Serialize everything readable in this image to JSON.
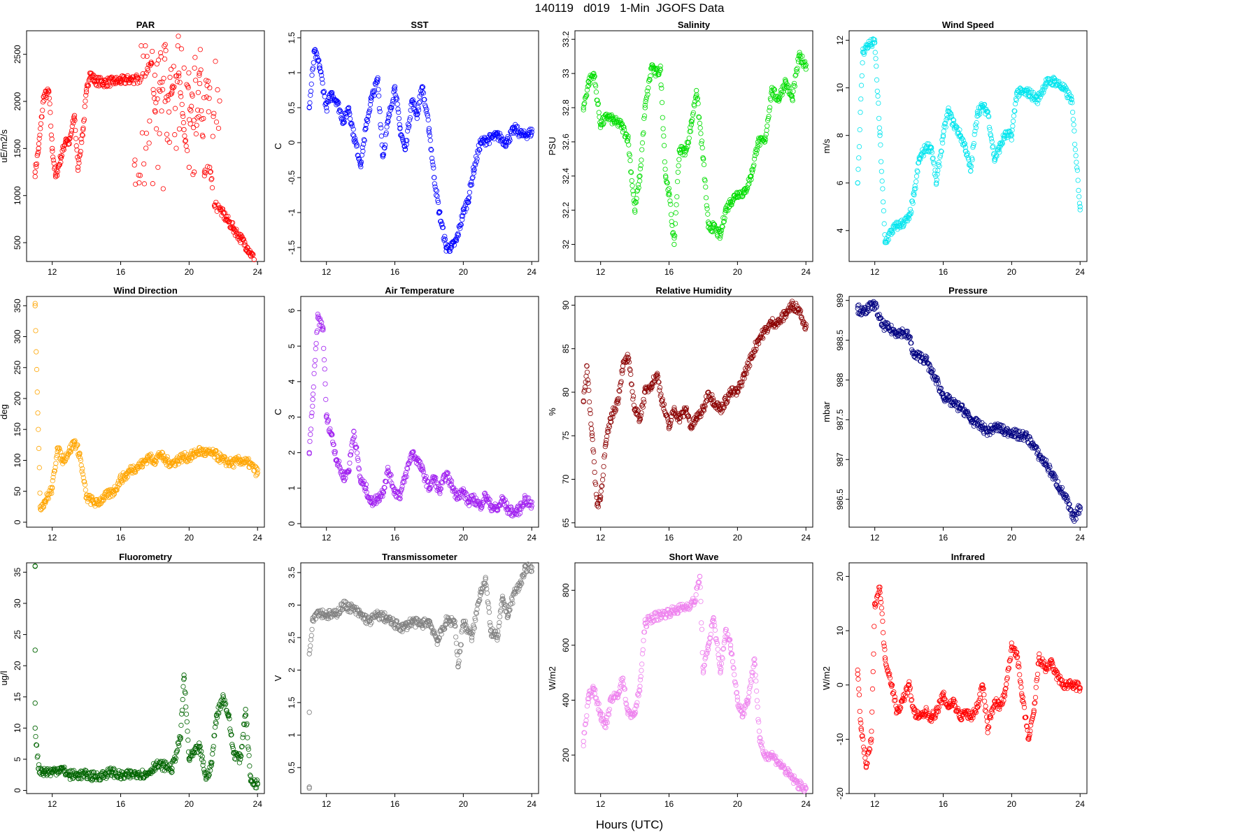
{
  "title": "140119   d019   1-Min  JGOFS Data",
  "xlabel": "Hours (UTC)",
  "chart_data": [
    {
      "type": "scatter",
      "title": "PAR",
      "ylabel": "uE/m2/s",
      "color": "#ff0000",
      "xlim": [
        10.5,
        24.4
      ],
      "ylim": [
        300,
        2750
      ],
      "xticks": [
        12,
        16,
        20,
        24
      ],
      "yticks": [
        500,
        1000,
        1500,
        2000,
        2500
      ],
      "x": [
        11,
        11.2,
        11.5,
        11.8,
        12,
        12.2,
        12.5,
        12.8,
        13,
        13.3,
        13.5,
        13.8,
        14,
        14.2,
        14.5,
        15,
        15.5,
        16,
        16.5,
        17,
        17.5,
        17.8,
        18,
        18.3,
        18.6,
        19,
        19.4,
        19.7,
        20,
        20.3,
        20.6,
        20.9,
        21.2,
        21.5,
        21.8,
        22.2,
        22.6,
        23,
        23.4,
        23.8
      ],
      "y": [
        1250,
        1500,
        2050,
        2100,
        1500,
        1200,
        1400,
        1600,
        1550,
        1850,
        1300,
        1700,
        2100,
        2300,
        2220,
        2200,
        2210,
        2220,
        2230,
        2240,
        2300,
        2400,
        1900,
        2200,
        2000,
        2100,
        2300,
        1700,
        1300,
        1250,
        2300,
        1250,
        1300,
        900,
        850,
        750,
        650,
        550,
        450,
        320
      ],
      "scatter_range": [
        [
          17.8,
          1000,
          2600
        ],
        [
          19.2,
          1500,
          2700
        ],
        [
          20.8,
          1600,
          2600
        ]
      ]
    },
    {
      "type": "scatter",
      "title": "SST",
      "ylabel": "C",
      "color": "#0000ff",
      "xlim": [
        10.5,
        24.4
      ],
      "ylim": [
        -1.7,
        1.6
      ],
      "xticks": [
        12,
        16,
        20,
        24
      ],
      "yticks": [
        -1.5,
        -1.0,
        -0.5,
        0.0,
        0.5,
        1.0,
        1.5
      ],
      "x": [
        11,
        11.3,
        11.6,
        12,
        12.3,
        12.6,
        13,
        13.3,
        13.6,
        14,
        14.3,
        14.6,
        15,
        15.3,
        15.6,
        16,
        16.3,
        16.6,
        17,
        17.3,
        17.6,
        18,
        18.3,
        18.6,
        19,
        19.3,
        19.6,
        20,
        20.3,
        20.6,
        21,
        21.5,
        22,
        22.5,
        23,
        23.5,
        24
      ],
      "y": [
        0.5,
        1.3,
        1.1,
        0.5,
        0.7,
        0.6,
        0.3,
        0.5,
        0.1,
        -0.3,
        0.2,
        0.6,
        0.9,
        -0.2,
        0.3,
        0.8,
        0.2,
        -0.1,
        0.6,
        0.4,
        0.8,
        0.2,
        -0.5,
        -1.0,
        -1.5,
        -1.5,
        -1.4,
        -1.0,
        -0.8,
        -0.4,
        0.0,
        0.05,
        0.1,
        0.0,
        0.2,
        0.1,
        0.15
      ]
    },
    {
      "type": "scatter",
      "title": "Salinity",
      "ylabel": "PSU",
      "color": "#00dd00",
      "xlim": [
        10.5,
        24.4
      ],
      "ylim": [
        31.9,
        33.25
      ],
      "xticks": [
        12,
        16,
        20,
        24
      ],
      "yticks": [
        32.0,
        32.2,
        32.4,
        32.6,
        32.8,
        33.0,
        33.2
      ],
      "x": [
        11,
        11.3,
        11.6,
        12,
        12.4,
        12.8,
        13.2,
        13.6,
        14,
        14.3,
        14.6,
        15,
        15.2,
        15.5,
        15.8,
        16,
        16.3,
        16.6,
        17,
        17.3,
        17.6,
        18,
        18.3,
        18.6,
        19,
        19.3,
        19.6,
        20,
        20.4,
        20.8,
        21.2,
        21.6,
        22,
        22.4,
        22.8,
        23.2,
        23.6,
        24
      ],
      "y": [
        32.8,
        32.95,
        33.0,
        32.7,
        32.75,
        32.72,
        32.7,
        32.62,
        32.2,
        32.4,
        32.8,
        33.05,
        33.0,
        33.02,
        32.4,
        32.3,
        32.0,
        32.55,
        32.55,
        32.7,
        32.9,
        32.5,
        32.1,
        32.1,
        32.05,
        32.2,
        32.25,
        32.3,
        32.3,
        32.4,
        32.6,
        32.6,
        32.9,
        32.85,
        32.95,
        32.85,
        33.1,
        33.05
      ]
    },
    {
      "type": "scatter",
      "title": "Wind Speed",
      "ylabel": "m/s",
      "color": "#00e5ee",
      "xlim": [
        10.5,
        24.4
      ],
      "ylim": [
        2.7,
        12.4
      ],
      "xticks": [
        12,
        16,
        20,
        24
      ],
      "yticks": [
        4,
        6,
        8,
        10,
        12
      ],
      "x": [
        11,
        11.3,
        11.6,
        12,
        12.3,
        12.6,
        13,
        13.3,
        13.6,
        14,
        14.3,
        14.6,
        15,
        15.3,
        15.6,
        16,
        16.3,
        16.6,
        17,
        17.3,
        17.6,
        18,
        18.3,
        18.6,
        19,
        19.3,
        19.6,
        20,
        20.3,
        20.6,
        21,
        21.5,
        22,
        22.5,
        23,
        23.5,
        24
      ],
      "y": [
        6,
        11.5,
        11.8,
        11.9,
        8,
        3.5,
        4,
        4.2,
        4.3,
        4.5,
        5.5,
        7,
        7.5,
        7.5,
        6,
        8,
        9,
        8.5,
        8,
        7.5,
        6.5,
        9,
        9.2,
        9,
        7,
        7.5,
        8,
        8,
        9.8,
        9.8,
        9.8,
        9.5,
        10.2,
        10.3,
        10,
        9.5,
        5
      ]
    },
    {
      "type": "scatter",
      "title": "Wind Direction",
      "ylabel": "deg",
      "color": "#ffa500",
      "xlim": [
        10.5,
        24.4
      ],
      "ylim": [
        -8,
        365
      ],
      "xticks": [
        12,
        16,
        20,
        24
      ],
      "yticks": [
        0,
        50,
        100,
        150,
        200,
        250,
        300,
        350
      ],
      "x": [
        11,
        11.3,
        11.6,
        12,
        12.3,
        12.6,
        13,
        13.3,
        13.6,
        14,
        14.3,
        14.6,
        15,
        15.3,
        15.6,
        16,
        16.3,
        16.6,
        17,
        17.3,
        17.6,
        18,
        18.3,
        18.6,
        19,
        19.3,
        19.6,
        20,
        20.3,
        20.6,
        21,
        21.5,
        22,
        22.5,
        23,
        23.5,
        24
      ],
      "y": [
        350,
        25,
        35,
        55,
        120,
        100,
        115,
        130,
        110,
        40,
        35,
        30,
        40,
        45,
        50,
        70,
        75,
        85,
        90,
        95,
        105,
        100,
        110,
        100,
        95,
        100,
        105,
        105,
        110,
        115,
        112,
        110,
        100,
        95,
        100,
        95,
        80
      ]
    },
    {
      "type": "scatter",
      "title": "Air Temperature",
      "ylabel": "C",
      "color": "#a020f0",
      "xlim": [
        10.5,
        24.4
      ],
      "ylim": [
        -0.1,
        6.4
      ],
      "xticks": [
        12,
        16,
        20,
        24
      ],
      "yticks": [
        0,
        1,
        2,
        3,
        4,
        5,
        6
      ],
      "x": [
        11,
        11.2,
        11.5,
        11.8,
        12,
        12.3,
        12.6,
        13,
        13.3,
        13.6,
        14,
        14.3,
        14.6,
        15,
        15.3,
        15.6,
        16,
        16.3,
        16.6,
        17,
        17.3,
        17.6,
        18,
        18.3,
        18.6,
        19,
        19.3,
        19.6,
        20,
        20.3,
        20.6,
        21,
        21.3,
        21.6,
        22,
        22.3,
        22.6,
        23,
        23.3,
        23.6,
        24
      ],
      "y": [
        2.0,
        3.5,
        5.8,
        5.5,
        3.0,
        2.5,
        1.8,
        1.3,
        1.5,
        2.6,
        1.2,
        1.0,
        0.6,
        0.7,
        0.9,
        1.5,
        0.9,
        0.8,
        1.3,
        2.0,
        1.8,
        1.5,
        1.0,
        1.3,
        0.9,
        1.4,
        1.1,
        0.8,
        0.9,
        0.6,
        0.7,
        0.5,
        0.8,
        0.5,
        0.4,
        0.7,
        0.4,
        0.3,
        0.4,
        0.7,
        0.5
      ]
    },
    {
      "type": "scatter",
      "title": "Relative Humidity",
      "ylabel": "%",
      "color": "#8b0000",
      "xlim": [
        10.5,
        24.4
      ],
      "ylim": [
        64.5,
        91
      ],
      "xticks": [
        12,
        16,
        20,
        24
      ],
      "yticks": [
        65,
        70,
        75,
        80,
        85,
        90
      ],
      "x": [
        11,
        11.2,
        11.5,
        11.8,
        12,
        12.3,
        12.6,
        13,
        13.3,
        13.6,
        14,
        14.3,
        14.6,
        15,
        15.3,
        15.6,
        16,
        16.3,
        16.6,
        17,
        17.3,
        17.6,
        18,
        18.3,
        18.6,
        19,
        19.3,
        19.6,
        20,
        20.4,
        20.8,
        21.2,
        21.6,
        22,
        22.4,
        22.8,
        23.2,
        23.6,
        24
      ],
      "y": [
        79,
        83,
        75,
        67,
        68,
        74,
        77,
        79,
        83,
        84,
        78,
        77,
        80,
        81,
        82,
        79,
        76,
        78,
        77,
        78,
        76,
        77,
        78,
        80,
        79,
        78,
        79,
        80,
        80,
        82,
        84,
        86,
        87,
        88,
        88,
        89,
        90,
        89.5,
        87.5
      ]
    },
    {
      "type": "scatter",
      "title": "Pressure",
      "ylabel": "mbar",
      "color": "#000080",
      "xlim": [
        10.5,
        24.4
      ],
      "ylim": [
        986.15,
        989.05
      ],
      "xticks": [
        12,
        16,
        20,
        24
      ],
      "yticks": [
        986.5,
        987.0,
        987.5,
        988.0,
        988.5,
        989.0
      ],
      "x": [
        11,
        11.3,
        11.6,
        12,
        12.4,
        12.8,
        13.2,
        13.6,
        14,
        14.3,
        14.6,
        15,
        15.3,
        15.6,
        16,
        16.3,
        16.6,
        17,
        17.3,
        17.6,
        18,
        18.3,
        18.6,
        19,
        19.3,
        19.6,
        20,
        20.4,
        20.8,
        21.2,
        21.6,
        22,
        22.4,
        22.8,
        23.2,
        23.6,
        24
      ],
      "y": [
        988.9,
        988.85,
        988.9,
        988.95,
        988.7,
        988.65,
        988.6,
        988.6,
        988.55,
        988.3,
        988.3,
        988.25,
        988.1,
        988.0,
        987.8,
        987.75,
        987.7,
        987.65,
        987.6,
        987.5,
        987.45,
        987.4,
        987.35,
        987.4,
        987.4,
        987.35,
        987.35,
        987.3,
        987.3,
        987.2,
        987.05,
        986.95,
        986.8,
        986.65,
        986.5,
        986.25,
        986.4
      ]
    },
    {
      "type": "scatter",
      "title": "Fluorometry",
      "ylabel": "ug/l",
      "color": "#006400",
      "xlim": [
        10.5,
        24.4
      ],
      "ylim": [
        -0.5,
        36.5
      ],
      "xticks": [
        12,
        16,
        20,
        24
      ],
      "yticks": [
        0,
        5,
        10,
        15,
        20,
        25,
        30,
        35
      ],
      "x": [
        11,
        11,
        11,
        11,
        11.2,
        11.5,
        12,
        12.5,
        13,
        13.5,
        14,
        14.5,
        15,
        15.5,
        16,
        16.5,
        17,
        17.5,
        18,
        18.5,
        19,
        19.5,
        19.7,
        20,
        20.3,
        20.6,
        21,
        21.3,
        21.6,
        22,
        22.3,
        22.6,
        23,
        23.3,
        23.6,
        24
      ],
      "y": [
        36,
        22.5,
        14,
        10,
        3.5,
        3,
        3,
        3.5,
        2.5,
        2.5,
        2.5,
        2.2,
        2.5,
        3,
        2.3,
        2.5,
        2.8,
        2.5,
        4,
        4,
        3.5,
        8.5,
        18.5,
        5,
        6,
        7,
        2,
        4,
        12,
        15,
        12,
        6,
        5,
        13,
        1.5,
        1
      ]
    },
    {
      "type": "scatter",
      "title": "Transmissometer",
      "ylabel": "V",
      "color": "#808080",
      "xlim": [
        10.5,
        24.4
      ],
      "ylim": [
        0.1,
        3.65
      ],
      "xticks": [
        12,
        16,
        20,
        24
      ],
      "yticks": [
        0.5,
        1.0,
        1.5,
        2.0,
        2.5,
        3.0,
        3.5
      ],
      "x": [
        11,
        11,
        11,
        11.2,
        11.5,
        12,
        12.5,
        13,
        13.5,
        14,
        14.5,
        15,
        15.5,
        16,
        16.5,
        17,
        17.5,
        18,
        18.5,
        19,
        19.5,
        19.7,
        20,
        20.5,
        21,
        21.3,
        21.6,
        22,
        22.3,
        22.6,
        23,
        23.3,
        23.6,
        24
      ],
      "y": [
        0.2,
        1.35,
        2.25,
        2.8,
        2.9,
        2.85,
        2.85,
        3.0,
        2.95,
        2.85,
        2.75,
        2.85,
        2.8,
        2.7,
        2.65,
        2.75,
        2.7,
        2.75,
        2.45,
        2.75,
        2.75,
        2.05,
        2.75,
        2.5,
        3.2,
        3.4,
        2.6,
        2.5,
        3.1,
        2.85,
        3.2,
        3.3,
        3.55,
        3.58
      ]
    },
    {
      "type": "scatter",
      "title": "Short Wave",
      "ylabel": "W/m2",
      "color": "#ee82ee",
      "xlim": [
        10.5,
        24.4
      ],
      "ylim": [
        60,
        900
      ],
      "xticks": [
        12,
        16,
        20,
        24
      ],
      "yticks": [
        200,
        400,
        600,
        800
      ],
      "x": [
        11,
        11.3,
        11.6,
        12,
        12.3,
        12.6,
        13,
        13.3,
        13.6,
        14,
        14.3,
        14.6,
        15,
        15.5,
        16,
        16.5,
        17,
        17.5,
        17.8,
        18,
        18.3,
        18.6,
        19,
        19.3,
        19.6,
        20,
        20.3,
        20.6,
        21,
        21.3,
        21.6,
        22,
        22.3,
        22.6,
        23,
        23.3,
        23.6,
        24
      ],
      "y": [
        250,
        420,
        440,
        350,
        300,
        400,
        420,
        480,
        350,
        350,
        450,
        680,
        700,
        710,
        720,
        730,
        740,
        760,
        850,
        500,
        600,
        700,
        500,
        650,
        600,
        400,
        350,
        400,
        550,
        250,
        200,
        200,
        180,
        160,
        130,
        110,
        90,
        80
      ]
    },
    {
      "type": "scatter",
      "title": "Infrared",
      "ylabel": "W/m2",
      "color": "#ff0000",
      "xlim": [
        10.5,
        24.4
      ],
      "ylim": [
        -20,
        22.5
      ],
      "xticks": [
        12,
        16,
        20,
        24
      ],
      "yticks": [
        -20,
        -10,
        0,
        10,
        20
      ],
      "x": [
        11,
        11.2,
        11.5,
        11.8,
        12,
        12.3,
        12.6,
        13,
        13.3,
        13.6,
        14,
        14.3,
        14.6,
        15,
        15.3,
        15.6,
        16,
        16.3,
        16.6,
        17,
        17.3,
        17.6,
        18,
        18.3,
        18.6,
        19,
        19.3,
        19.6,
        20,
        20.3,
        20.6,
        21,
        21.3,
        21.6,
        22,
        22.3,
        22.6,
        23,
        23.3,
        23.6,
        24
      ],
      "y": [
        2,
        -8,
        -15,
        -10,
        15,
        18,
        5,
        0,
        -5,
        -3,
        0,
        -5,
        -6,
        -5,
        -6,
        -5,
        -2,
        -4,
        -3,
        -6,
        -5,
        -6,
        -4,
        0,
        -8,
        -3,
        -4,
        -2,
        7,
        6,
        -2,
        -10,
        -5,
        5,
        3,
        4,
        2,
        0,
        0,
        0,
        -0.5
      ]
    }
  ]
}
